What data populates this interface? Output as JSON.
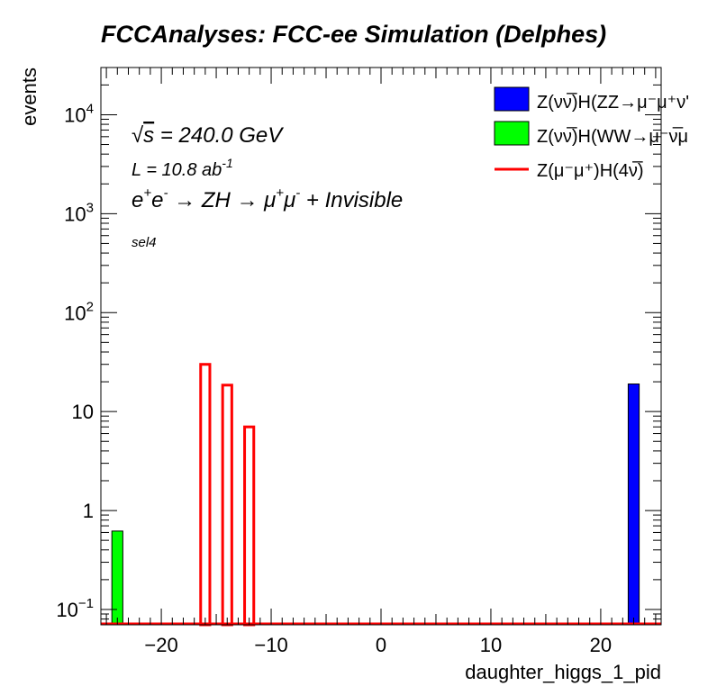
{
  "chart_data": {
    "type": "bar",
    "title": "FCCAnalyses: FCC-ee Simulation (Delphes)",
    "xlabel": "daughter_higgs_1_pid",
    "ylabel": "events",
    "xlim": [
      -25.5,
      25.5
    ],
    "ylim": [
      0.07,
      30000
    ],
    "yscale": "log",
    "grid": false,
    "legend_position": "top-right",
    "x_ticks": [
      -20,
      -10,
      0,
      10,
      20
    ],
    "x_tick_labels": [
      "−20",
      "−10",
      "0",
      "10",
      "20"
    ],
    "y_tick_labels": [
      {
        "base": "10",
        "exp": "−1",
        "value": 0.1
      },
      {
        "base": "1",
        "exp": "",
        "value": 1
      },
      {
        "base": "10",
        "exp": "",
        "value": 10
      },
      {
        "base": "10",
        "exp": "2",
        "value": 100
      },
      {
        "base": "10",
        "exp": "3",
        "value": 1000
      },
      {
        "base": "10",
        "exp": "4",
        "value": 10000
      }
    ],
    "annotations": {
      "sqrts_symbol": "√",
      "sqrts_s": "s",
      "sqrts_value": " = 240.0 GeV",
      "lumi_main": "L = 10.8 ab",
      "lumi_exp": "-1",
      "process_parts": [
        {
          "t": "e",
          "s": ""
        },
        {
          "t": "",
          "s": "+"
        },
        {
          "t": "e",
          "s": ""
        },
        {
          "t": "",
          "s": "-"
        },
        {
          "t": " → ZH → μ",
          "s": ""
        },
        {
          "t": "",
          "s": "+"
        },
        {
          "t": "μ",
          "s": ""
        },
        {
          "t": "",
          "s": "-"
        },
        {
          "t": " + Invisible",
          "s": ""
        }
      ],
      "selection": "sel4"
    },
    "series": [
      {
        "name": "Z(νν̅)H(ZZ→μ⁻μ⁺νν̅)",
        "legend_text": "Z(νν̅)H(ZZ→μ⁻μ⁺ν'",
        "style": "filled",
        "color": "#0000ff",
        "points": [
          {
            "x": 23,
            "y": 19
          }
        ]
      },
      {
        "name": "Z(νν̅)H(WW→μ⁻ν̅μ",
        "legend_text": "Z(νν̅)H(WW→μ⁻ν̅μ",
        "style": "filled",
        "color": "#00ff00",
        "points": [
          {
            "x": -24,
            "y": 0.62
          }
        ]
      },
      {
        "name": "Z(μ⁻μ⁺)H(4ν̅)",
        "legend_text": "Z(μ⁻μ⁺)H(4ν̅)",
        "style": "outline",
        "color": "#ff0000",
        "points": [
          {
            "x": -16,
            "y": 30
          },
          {
            "x": -14,
            "y": 18.5
          },
          {
            "x": -12,
            "y": 7
          }
        ]
      }
    ]
  }
}
